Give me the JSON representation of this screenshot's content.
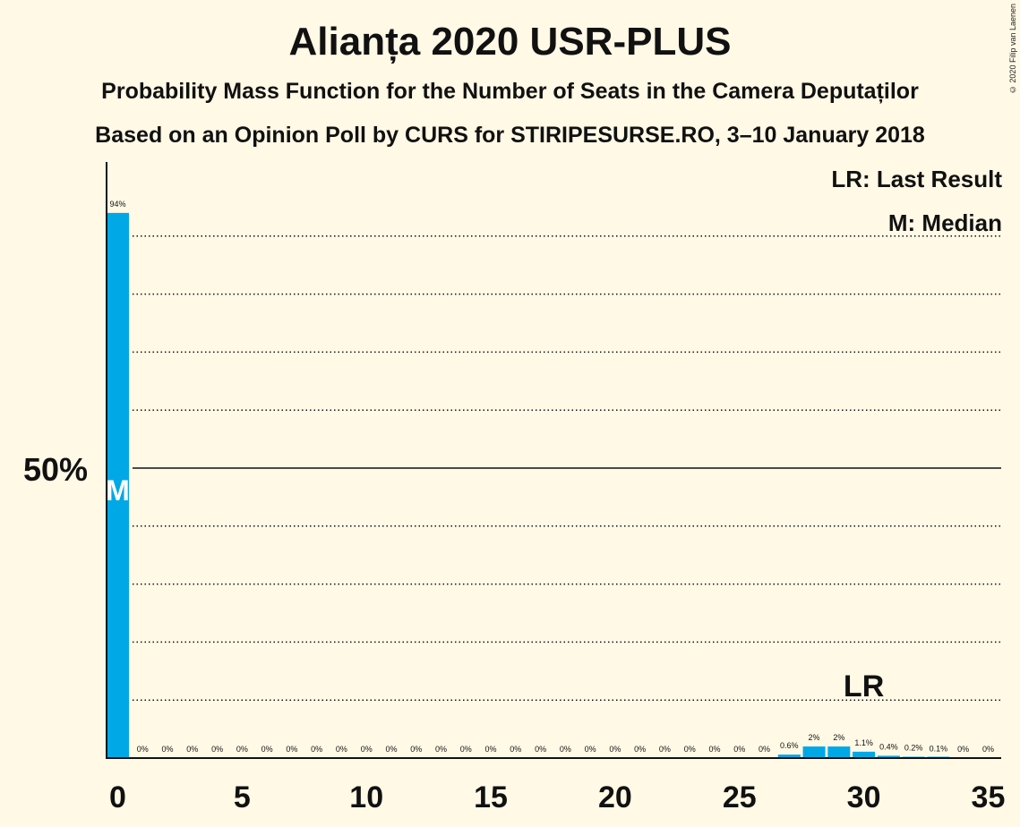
{
  "title": "Alianța 2020 USR-PLUS",
  "subtitle1": "Probability Mass Function for the Number of Seats in the Camera Deputaților",
  "subtitle2": "Based on an Opinion Poll by CURS for STIRIPESURSE.RO, 3–10 January 2018",
  "copyright": "© 2020 Filip van Laenen",
  "legend": {
    "last_result": "LR: Last Result",
    "median": "M: Median"
  },
  "colors": {
    "bar": "#00a8e6",
    "background": "#fff9e6",
    "text": "#111111"
  },
  "chart_data": {
    "type": "bar",
    "title": "Alianța 2020 USR-PLUS",
    "xlabel": "",
    "ylabel": "",
    "x": [
      0,
      1,
      2,
      3,
      4,
      5,
      6,
      7,
      8,
      9,
      10,
      11,
      12,
      13,
      14,
      15,
      16,
      17,
      18,
      19,
      20,
      21,
      22,
      23,
      24,
      25,
      26,
      27,
      28,
      29,
      30,
      31,
      32,
      33,
      34,
      35
    ],
    "values": [
      94,
      0,
      0,
      0,
      0,
      0,
      0,
      0,
      0,
      0,
      0,
      0,
      0,
      0,
      0,
      0,
      0,
      0,
      0,
      0,
      0,
      0,
      0,
      0,
      0,
      0,
      0,
      0.6,
      2,
      2,
      1.1,
      0.4,
      0.2,
      0.1,
      0,
      0
    ],
    "labels": [
      "94%",
      "0%",
      "0%",
      "0%",
      "0%",
      "0%",
      "0%",
      "0%",
      "0%",
      "0%",
      "0%",
      "0%",
      "0%",
      "0%",
      "0%",
      "0%",
      "0%",
      "0%",
      "0%",
      "0%",
      "0%",
      "0%",
      "0%",
      "0%",
      "0%",
      "0%",
      "0%",
      "0.6%",
      "2%",
      "2%",
      "1.1%",
      "0.4%",
      "0.2%",
      "0.1%",
      "0%",
      "0%"
    ],
    "x_ticks": [
      "0",
      "5",
      "10",
      "15",
      "20",
      "25",
      "30",
      "35"
    ],
    "x_tick_values": [
      0,
      5,
      10,
      15,
      20,
      25,
      30,
      35
    ],
    "y_tick_label": "50%",
    "y_tick_value": 50,
    "ylim": [
      0,
      100
    ],
    "grid_interval": 10,
    "median_seat": 0,
    "median_marker": "M",
    "last_result_seat": 30,
    "last_result_marker": "LR"
  }
}
